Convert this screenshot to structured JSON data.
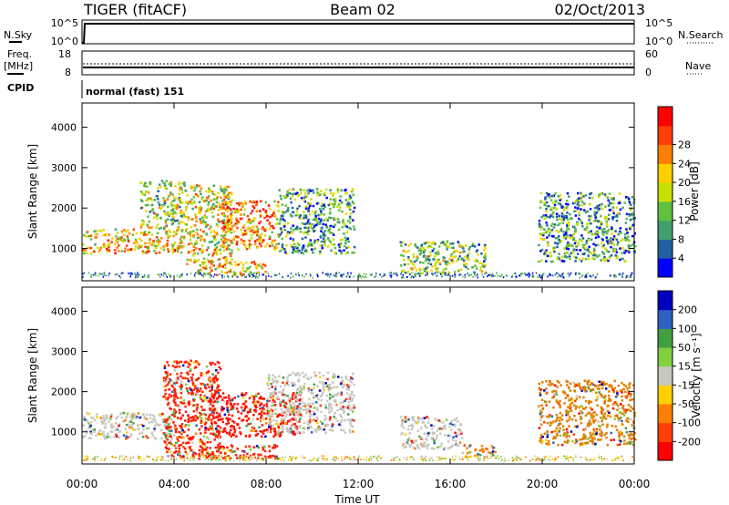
{
  "header": {
    "title": "TIGER (fitACF)",
    "beam": "Beam 02",
    "date": "02/Oct/2013"
  },
  "params": {
    "nsky_label": "N.Sky",
    "nsearch_label": "N.Search",
    "freq_label_1": "Freq.",
    "freq_label_2": "[MHz]",
    "nave_label": "Nave",
    "cpid_label": "CPID",
    "cpid_value": "normal (fast) 151",
    "nsky_ticks": [
      "10^5",
      "10^0"
    ],
    "nsearch_ticks": [
      "10^5",
      "10^0"
    ],
    "freq_ticks": [
      "18",
      "8"
    ],
    "nave_ticks": [
      "60",
      "0"
    ]
  },
  "chart_data": [
    {
      "type": "heatmap",
      "title": "",
      "xlabel": "Time UT",
      "ylabel": "Slant Range [km]",
      "x_ticks": [
        "00:00",
        "04:00",
        "08:00",
        "12:00",
        "16:00",
        "20:00",
        "00:00"
      ],
      "y_ticks": [
        "1000",
        "2000",
        "3000",
        "4000"
      ],
      "ylim": [
        200,
        4600
      ],
      "colorbar_label": "Power [dB]",
      "colorbar_ticks": [
        "4",
        "8",
        "12",
        "16",
        "20",
        "24",
        "28"
      ],
      "colorbar_colors": [
        "#0000ff",
        "#2060a0",
        "#40a070",
        "#60c040",
        "#c8e000",
        "#ffd000",
        "#ff8000",
        "#ff4000",
        "#ff0000"
      ],
      "regions": [
        {
          "t0": 0.0,
          "t1": 4.5,
          "r0": 900,
          "r1": 1500,
          "level": 0.62
        },
        {
          "t0": 2.5,
          "t1": 4.5,
          "r0": 1500,
          "r1": 2700,
          "level": 0.45
        },
        {
          "t0": 4.5,
          "t1": 6.5,
          "r0": 600,
          "r1": 2600,
          "level": 0.55
        },
        {
          "t0": 6.0,
          "t1": 8.5,
          "r0": 1000,
          "r1": 2200,
          "level": 0.7
        },
        {
          "t0": 5.0,
          "t1": 8.0,
          "r0": 350,
          "r1": 700,
          "level": 0.6
        },
        {
          "t0": 8.5,
          "t1": 11.8,
          "r0": 900,
          "r1": 2500,
          "level": 0.3
        },
        {
          "t0": 13.8,
          "t1": 17.5,
          "r0": 400,
          "r1": 1200,
          "level": 0.4
        },
        {
          "t0": 19.8,
          "t1": 24.0,
          "r0": 700,
          "r1": 2400,
          "level": 0.3
        }
      ]
    },
    {
      "type": "heatmap",
      "title": "",
      "xlabel": "Time UT",
      "ylabel": "Slant Range [km]",
      "x_ticks": [
        "00:00",
        "04:00",
        "08:00",
        "12:00",
        "16:00",
        "20:00",
        "00:00"
      ],
      "y_ticks": [
        "1000",
        "2000",
        "3000",
        "4000"
      ],
      "ylim": [
        200,
        4600
      ],
      "colorbar_label": "Velocity [m s⁻¹]",
      "colorbar_ticks": [
        "200",
        "100",
        "50",
        "15",
        "-15",
        "-50",
        "-100",
        "-200"
      ],
      "colorbar_colors": [
        "#0000c0",
        "#3060c0",
        "#40a040",
        "#80d040",
        "#c8c8c0",
        "#ffd000",
        "#ff8000",
        "#ff4000",
        "#ff0000"
      ],
      "regions": [
        {
          "t0": 0.0,
          "t1": 4.0,
          "r0": 850,
          "r1": 1500,
          "color": "#c8c8c0"
        },
        {
          "t0": 3.5,
          "t1": 6.0,
          "r0": 400,
          "r1": 2800,
          "color": "#ff2000"
        },
        {
          "t0": 5.5,
          "t1": 9.5,
          "r0": 900,
          "r1": 2000,
          "color": "#ff1000"
        },
        {
          "t0": 5.0,
          "t1": 8.5,
          "r0": 350,
          "r1": 700,
          "color": "#ff2000"
        },
        {
          "t0": 8.0,
          "t1": 11.8,
          "r0": 1000,
          "r1": 2500,
          "color": "#c8c8c0"
        },
        {
          "t0": 13.8,
          "t1": 16.5,
          "r0": 600,
          "r1": 1400,
          "color": "#c8c8c0"
        },
        {
          "t0": 16.5,
          "t1": 18.0,
          "r0": 400,
          "r1": 700,
          "color": "#ff8000"
        },
        {
          "t0": 19.8,
          "t1": 24.0,
          "r0": 700,
          "r1": 2300,
          "color": "#e08000"
        }
      ]
    }
  ]
}
